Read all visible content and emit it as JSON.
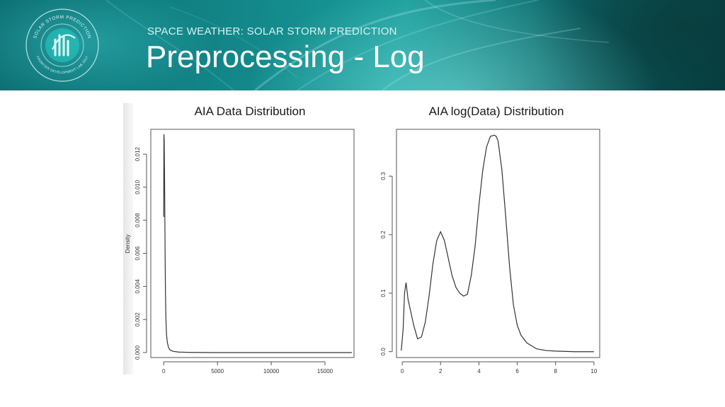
{
  "header": {
    "subtitle": "SPACE WEATHER: SOLAR STORM PREDICTION",
    "title": "Preprocessing - Log",
    "logo": {
      "top_text": "SOLAR STORM PREDICTION",
      "bottom_text": "FRONTIER DEVELOPMENT LAB 2017"
    }
  },
  "colors": {
    "banner": "#13888a",
    "curve": "#333333"
  },
  "chart_data": [
    {
      "type": "line",
      "title": "AIA Data Distribution",
      "xlabel": "",
      "ylabel": "Density",
      "xlim": [
        -1200,
        17700
      ],
      "ylim": [
        -0.0003,
        0.0135
      ],
      "xticks": [
        0,
        5000,
        10000,
        15000
      ],
      "xtick_labels": [
        "0",
        "5000",
        "10000",
        "15000"
      ],
      "yticks": [
        0.0,
        0.002,
        0.004,
        0.006,
        0.008,
        0.01,
        0.012
      ],
      "ytick_labels": [
        "0.000",
        "0.002",
        "0.004",
        "0.006",
        "0.008",
        "0.010",
        "0.012"
      ],
      "grid": false,
      "legend": "none",
      "x": [
        0,
        20,
        45,
        70,
        100,
        130,
        160,
        200,
        260,
        340,
        450,
        600,
        900,
        1400,
        2500,
        5000,
        10000,
        15000,
        17500
      ],
      "y": [
        0.0082,
        0.0132,
        0.0128,
        0.0112,
        0.0088,
        0.006,
        0.0038,
        0.0022,
        0.0011,
        0.0006,
        0.0003,
        0.00015,
        7e-05,
        3e-05,
        1e-05,
        0.0,
        0.0,
        0.0,
        0.0
      ]
    },
    {
      "type": "line",
      "title": "AIA log(Data) Distribution",
      "xlabel": "",
      "ylabel": "",
      "xlim": [
        -0.3,
        10.3
      ],
      "ylim": [
        -0.01,
        0.38
      ],
      "xticks": [
        0,
        2,
        4,
        6,
        8,
        10
      ],
      "xtick_labels": [
        "0",
        "2",
        "4",
        "6",
        "8",
        "10"
      ],
      "yticks": [
        0.0,
        0.1,
        0.2,
        0.3
      ],
      "ytick_labels": [
        "0.0",
        "0.1",
        "0.2",
        "0.3"
      ],
      "grid": false,
      "legend": "none",
      "x": [
        -0.05,
        0.05,
        0.12,
        0.2,
        0.3,
        0.4,
        0.6,
        0.8,
        1.0,
        1.2,
        1.4,
        1.6,
        1.8,
        2.0,
        2.2,
        2.4,
        2.6,
        2.8,
        3.0,
        3.2,
        3.4,
        3.6,
        3.8,
        4.0,
        4.2,
        4.4,
        4.6,
        4.8,
        4.9,
        5.0,
        5.2,
        5.4,
        5.6,
        5.8,
        6.0,
        6.2,
        6.5,
        7.0,
        7.5,
        8.0,
        9.0,
        10.0
      ],
      "y": [
        0.002,
        0.04,
        0.1,
        0.118,
        0.09,
        0.075,
        0.045,
        0.022,
        0.025,
        0.05,
        0.095,
        0.15,
        0.19,
        0.205,
        0.19,
        0.16,
        0.13,
        0.11,
        0.1,
        0.095,
        0.098,
        0.13,
        0.18,
        0.25,
        0.31,
        0.35,
        0.368,
        0.37,
        0.368,
        0.36,
        0.31,
        0.23,
        0.145,
        0.08,
        0.045,
        0.028,
        0.015,
        0.005,
        0.002,
        0.001,
        0.0,
        0.0
      ]
    }
  ]
}
